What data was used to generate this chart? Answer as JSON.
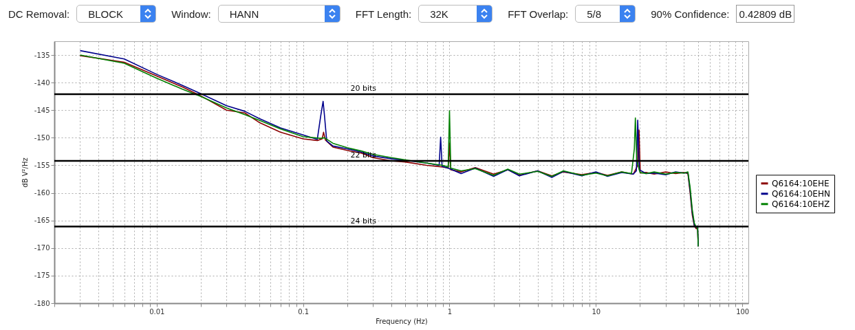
{
  "chart_data": {
    "type": "line",
    "xlabel": "Frequency (Hz)",
    "ylabel": "dB V²/Hz",
    "annotations": [
      "DC Removal:",
      "BLOCK",
      "Window:",
      "HANN",
      "FFT Length:",
      "32K",
      "FFT Overlap:",
      "5/8",
      "90% Confidence:",
      "0.42809 dB"
    ],
    "log": "x",
    "grid": true,
    "legend": "right",
    "line_style": "solid",
    "xlim": [
      0.002,
      110
    ],
    "ylim": [
      -180,
      -132.5
    ],
    "xticks": [
      {
        "value": 0.002,
        "label": null
      },
      {
        "value": 0.003,
        "label": null
      },
      {
        "value": 0.004,
        "label": null
      },
      {
        "value": 0.005,
        "label": null
      },
      {
        "value": 0.006,
        "label": null
      },
      {
        "value": 0.007,
        "label": null
      },
      {
        "value": 0.008,
        "label": null
      },
      {
        "value": 0.009,
        "label": null
      },
      0.01,
      {
        "value": 0.02,
        "label": null
      },
      {
        "value": 0.03,
        "label": null
      },
      {
        "value": 0.04,
        "label": null
      },
      {
        "value": 0.05,
        "label": null
      },
      {
        "value": 0.06,
        "label": null
      },
      {
        "value": 0.07,
        "label": null
      },
      {
        "value": 0.08,
        "label": null
      },
      {
        "value": 0.09,
        "label": null
      },
      0.1,
      {
        "value": 0.2,
        "label": null
      },
      {
        "value": 0.3,
        "label": null
      },
      {
        "value": 0.4,
        "label": null
      },
      {
        "value": 0.5,
        "label": null
      },
      {
        "value": 0.6,
        "label": null
      },
      {
        "value": 0.7,
        "label": null
      },
      {
        "value": 0.8,
        "label": null
      },
      {
        "value": 0.9,
        "label": null
      },
      1,
      {
        "value": 2,
        "label": null
      },
      {
        "value": 3,
        "label": null
      },
      {
        "value": 4,
        "label": null
      },
      {
        "value": 5,
        "label": null
      },
      {
        "value": 6,
        "label": null
      },
      {
        "value": 7,
        "label": null
      },
      {
        "value": 8,
        "label": null
      },
      {
        "value": 9,
        "label": null
      },
      10,
      {
        "value": 20,
        "label": null
      },
      {
        "value": 30,
        "label": null
      },
      {
        "value": 40,
        "label": null
      },
      {
        "value": 50,
        "label": null
      },
      {
        "value": 60,
        "label": null
      },
      {
        "value": 70,
        "label": null
      },
      {
        "value": 80,
        "label": null
      },
      {
        "value": 90,
        "label": null
      },
      100
    ],
    "yticks": [
      -180,
      -175,
      -170,
      -165,
      -160,
      -155,
      -150,
      -145,
      -140,
      -135
    ],
    "ref_lines": [
      {
        "axis": "y",
        "value": -142.1,
        "label": "20 bits",
        "color": "#000000"
      },
      {
        "axis": "y",
        "value": -154.2,
        "label": "22 bits",
        "color": "#000000"
      },
      {
        "axis": "y",
        "value": -166.1,
        "label": "24 bits",
        "color": "#000000"
      }
    ],
    "series": [
      {
        "name": "Q6164:10EHE",
        "color": "#8b0000",
        "x": [
          0.003,
          0.006,
          0.01,
          0.015,
          0.02,
          0.03,
          0.04,
          0.05,
          0.07,
          0.1,
          0.125,
          0.135,
          0.138,
          0.142,
          0.16,
          0.2,
          0.25,
          0.3,
          0.4,
          0.5,
          0.7,
          0.9,
          0.98,
          1.0,
          1.02,
          1.2,
          1.5,
          2,
          2.5,
          3,
          4,
          5,
          6,
          8,
          10,
          12,
          15,
          18,
          19.3,
          19.7,
          20.1,
          22,
          25,
          30,
          35,
          40,
          42.5,
          44,
          45.5,
          47,
          48.5,
          49.5,
          50
        ],
        "values": [
          -135.1,
          -136.3,
          -138.8,
          -140.8,
          -142.4,
          -145.0,
          -145.5,
          -147.2,
          -149.0,
          -150.2,
          -150.5,
          -150.2,
          -149.0,
          -150.4,
          -151.7,
          -152.3,
          -152.8,
          -153.6,
          -154.2,
          -154.4,
          -155.0,
          -155.3,
          -155.5,
          -151.0,
          -155.8,
          -156.2,
          -155.4,
          -156.6,
          -155.8,
          -156.8,
          -156.0,
          -156.9,
          -156.2,
          -156.7,
          -156.3,
          -156.8,
          -156.2,
          -156.6,
          -155.0,
          -148.6,
          -156.4,
          -156.3,
          -156.6,
          -156.2,
          -156.5,
          -156.3,
          -156.5,
          -160.0,
          -164.0,
          -166.0,
          -166.5,
          -166.2,
          -169.7
        ]
      },
      {
        "name": "Q6164:10EHN",
        "color": "#00008b",
        "x": [
          0.003,
          0.006,
          0.01,
          0.015,
          0.02,
          0.03,
          0.04,
          0.05,
          0.07,
          0.1,
          0.125,
          0.132,
          0.137,
          0.14,
          0.145,
          0.16,
          0.2,
          0.25,
          0.3,
          0.4,
          0.5,
          0.7,
          0.85,
          0.87,
          0.89,
          1.0,
          1.2,
          1.5,
          2,
          2.5,
          3,
          4,
          5,
          6,
          8,
          10,
          12,
          15,
          18,
          18.9,
          19.3,
          19.8,
          22,
          25,
          30,
          35,
          40,
          42.5,
          44,
          45.5,
          47,
          48.5,
          49.5,
          50
        ],
        "values": [
          -134.2,
          -135.7,
          -138.5,
          -140.5,
          -142.0,
          -144.2,
          -145.2,
          -146.5,
          -148.2,
          -149.5,
          -150.3,
          -146.0,
          -143.4,
          -146.0,
          -150.6,
          -151.5,
          -152.0,
          -152.6,
          -153.3,
          -153.8,
          -154.1,
          -154.6,
          -155.0,
          -149.9,
          -155.2,
          -155.6,
          -156.5,
          -155.5,
          -157.0,
          -155.8,
          -156.9,
          -156.0,
          -157.2,
          -156.1,
          -156.9,
          -156.2,
          -157.0,
          -156.3,
          -156.6,
          -156.0,
          -146.8,
          -155.8,
          -156.5,
          -156.4,
          -156.7,
          -156.2,
          -156.4,
          -156.3,
          -159.5,
          -163.5,
          -165.8,
          -166.3,
          -166.0,
          -169.7
        ]
      },
      {
        "name": "Q6164:10EHZ",
        "color": "#008000",
        "x": [
          0.003,
          0.006,
          0.01,
          0.015,
          0.02,
          0.03,
          0.04,
          0.05,
          0.07,
          0.1,
          0.13,
          0.14,
          0.16,
          0.2,
          0.25,
          0.3,
          0.4,
          0.5,
          0.7,
          0.9,
          0.98,
          1.0,
          1.02,
          1.2,
          1.5,
          2,
          2.5,
          3,
          4,
          5,
          6,
          8,
          10,
          12,
          15,
          17.5,
          18.3,
          18.6,
          19.0,
          20,
          22,
          25,
          30,
          35,
          40,
          42.5,
          44,
          45.5,
          47,
          48.5,
          49.5,
          50
        ],
        "values": [
          -135.0,
          -136.5,
          -139.2,
          -141.2,
          -142.5,
          -144.6,
          -145.8,
          -146.8,
          -148.4,
          -149.8,
          -150.1,
          -150.0,
          -151.0,
          -151.8,
          -152.4,
          -153.0,
          -153.6,
          -154.0,
          -154.6,
          -155.0,
          -155.3,
          -145.1,
          -155.5,
          -156.0,
          -155.6,
          -156.8,
          -155.7,
          -156.6,
          -156.1,
          -157.0,
          -156.0,
          -156.8,
          -156.4,
          -156.9,
          -156.2,
          -156.5,
          -152.0,
          -146.4,
          -154.0,
          -156.3,
          -156.5,
          -156.2,
          -156.6,
          -156.3,
          -156.4,
          -156.2,
          -159.0,
          -163.0,
          -165.5,
          -166.2,
          -166.4,
          -169.7
        ]
      }
    ]
  }
}
